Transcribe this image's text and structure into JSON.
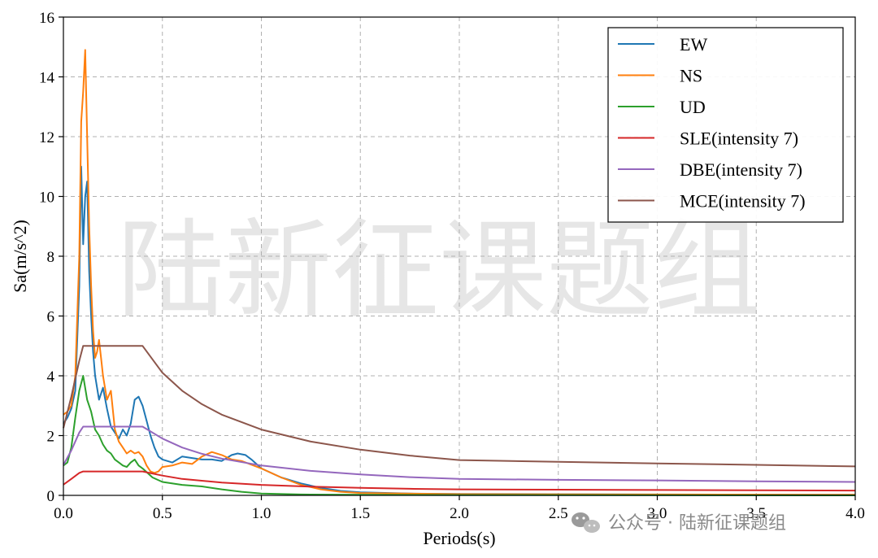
{
  "chart_data": {
    "type": "line",
    "xlabel": "Periods(s)",
    "ylabel": "Sa(m/s^2)",
    "xlim": [
      0,
      4
    ],
    "ylim": [
      0,
      16
    ],
    "xticks": [
      "0.0",
      "0.5",
      "1.0",
      "1.5",
      "2.0",
      "2.5",
      "3.0",
      "3.5",
      "4.0"
    ],
    "yticks": [
      "0",
      "2",
      "4",
      "6",
      "8",
      "10",
      "12",
      "14",
      "16"
    ],
    "grid": true,
    "legend_position": "top-right",
    "series": [
      {
        "name": "EW",
        "color": "#1f77b4",
        "points": [
          [
            0,
            2.4
          ],
          [
            0.02,
            2.6
          ],
          [
            0.04,
            2.9
          ],
          [
            0.06,
            3.5
          ],
          [
            0.08,
            7.0
          ],
          [
            0.09,
            11.0
          ],
          [
            0.1,
            8.4
          ],
          [
            0.11,
            10.0
          ],
          [
            0.12,
            10.5
          ],
          [
            0.13,
            7.5
          ],
          [
            0.14,
            6.0
          ],
          [
            0.15,
            4.8
          ],
          [
            0.16,
            4.0
          ],
          [
            0.17,
            3.6
          ],
          [
            0.18,
            3.2
          ],
          [
            0.2,
            3.6
          ],
          [
            0.22,
            2.9
          ],
          [
            0.24,
            2.3
          ],
          [
            0.26,
            2.1
          ],
          [
            0.28,
            1.9
          ],
          [
            0.3,
            2.2
          ],
          [
            0.32,
            2.0
          ],
          [
            0.34,
            2.4
          ],
          [
            0.36,
            3.2
          ],
          [
            0.38,
            3.3
          ],
          [
            0.4,
            3.0
          ],
          [
            0.42,
            2.5
          ],
          [
            0.44,
            2.0
          ],
          [
            0.46,
            1.6
          ],
          [
            0.48,
            1.3
          ],
          [
            0.5,
            1.2
          ],
          [
            0.55,
            1.1
          ],
          [
            0.6,
            1.3
          ],
          [
            0.65,
            1.25
          ],
          [
            0.7,
            1.2
          ],
          [
            0.75,
            1.2
          ],
          [
            0.8,
            1.15
          ],
          [
            0.85,
            1.35
          ],
          [
            0.88,
            1.4
          ],
          [
            0.92,
            1.35
          ],
          [
            0.95,
            1.2
          ],
          [
            1.0,
            0.9
          ],
          [
            1.1,
            0.6
          ],
          [
            1.2,
            0.4
          ],
          [
            1.3,
            0.25
          ],
          [
            1.4,
            0.15
          ],
          [
            1.5,
            0.1
          ],
          [
            1.75,
            0.06
          ],
          [
            2.0,
            0.05
          ],
          [
            3.0,
            0.03
          ],
          [
            4.0,
            0.02
          ]
        ]
      },
      {
        "name": "NS",
        "color": "#ff7f0e",
        "points": [
          [
            0,
            2.7
          ],
          [
            0.02,
            2.8
          ],
          [
            0.04,
            3.0
          ],
          [
            0.06,
            4.0
          ],
          [
            0.08,
            8.0
          ],
          [
            0.09,
            12.5
          ],
          [
            0.1,
            13.5
          ],
          [
            0.11,
            14.9
          ],
          [
            0.12,
            12.0
          ],
          [
            0.13,
            9.0
          ],
          [
            0.14,
            7.0
          ],
          [
            0.15,
            5.5
          ],
          [
            0.16,
            4.6
          ],
          [
            0.17,
            4.8
          ],
          [
            0.18,
            5.2
          ],
          [
            0.19,
            4.6
          ],
          [
            0.2,
            4.0
          ],
          [
            0.22,
            3.2
          ],
          [
            0.24,
            3.5
          ],
          [
            0.26,
            2.2
          ],
          [
            0.28,
            1.8
          ],
          [
            0.3,
            1.6
          ],
          [
            0.32,
            1.4
          ],
          [
            0.34,
            1.5
          ],
          [
            0.36,
            1.4
          ],
          [
            0.38,
            1.45
          ],
          [
            0.4,
            1.3
          ],
          [
            0.42,
            1.0
          ],
          [
            0.44,
            0.8
          ],
          [
            0.46,
            0.75
          ],
          [
            0.48,
            0.8
          ],
          [
            0.5,
            0.95
          ],
          [
            0.55,
            1.0
          ],
          [
            0.6,
            1.1
          ],
          [
            0.65,
            1.05
          ],
          [
            0.7,
            1.3
          ],
          [
            0.75,
            1.45
          ],
          [
            0.8,
            1.35
          ],
          [
            0.85,
            1.2
          ],
          [
            0.9,
            1.15
          ],
          [
            1.0,
            0.9
          ],
          [
            1.1,
            0.6
          ],
          [
            1.2,
            0.35
          ],
          [
            1.3,
            0.2
          ],
          [
            1.4,
            0.12
          ],
          [
            1.5,
            0.08
          ],
          [
            2.0,
            0.04
          ],
          [
            3.0,
            0.03
          ],
          [
            4.0,
            0.02
          ]
        ]
      },
      {
        "name": "UD",
        "color": "#2ca02c",
        "points": [
          [
            0,
            1.0
          ],
          [
            0.02,
            1.1
          ],
          [
            0.04,
            1.6
          ],
          [
            0.06,
            2.6
          ],
          [
            0.08,
            3.5
          ],
          [
            0.1,
            4.0
          ],
          [
            0.12,
            3.2
          ],
          [
            0.14,
            2.8
          ],
          [
            0.16,
            2.2
          ],
          [
            0.18,
            2.0
          ],
          [
            0.2,
            1.7
          ],
          [
            0.22,
            1.5
          ],
          [
            0.24,
            1.4
          ],
          [
            0.26,
            1.2
          ],
          [
            0.28,
            1.1
          ],
          [
            0.3,
            1.0
          ],
          [
            0.32,
            0.95
          ],
          [
            0.34,
            1.1
          ],
          [
            0.36,
            1.2
          ],
          [
            0.38,
            1.0
          ],
          [
            0.4,
            0.9
          ],
          [
            0.45,
            0.6
          ],
          [
            0.5,
            0.45
          ],
          [
            0.6,
            0.35
          ],
          [
            0.7,
            0.3
          ],
          [
            0.8,
            0.2
          ],
          [
            0.9,
            0.12
          ],
          [
            1.0,
            0.06
          ],
          [
            1.2,
            0.03
          ],
          [
            1.5,
            0.02
          ],
          [
            2.0,
            0.01
          ],
          [
            4.0,
            0.0
          ]
        ]
      },
      {
        "name": "SLE(intensity 7)",
        "color": "#d62728",
        "points": [
          [
            0,
            0.36
          ],
          [
            0.04,
            0.55
          ],
          [
            0.08,
            0.75
          ],
          [
            0.1,
            0.8
          ],
          [
            0.4,
            0.8
          ],
          [
            0.5,
            0.66
          ],
          [
            0.6,
            0.55
          ],
          [
            0.8,
            0.43
          ],
          [
            1.0,
            0.35
          ],
          [
            1.25,
            0.29
          ],
          [
            1.5,
            0.25
          ],
          [
            1.75,
            0.22
          ],
          [
            2.0,
            0.2
          ],
          [
            2.5,
            0.19
          ],
          [
            3.0,
            0.18
          ],
          [
            3.5,
            0.17
          ],
          [
            4.0,
            0.16
          ]
        ]
      },
      {
        "name": "DBE(intensity 7)",
        "color": "#9467bd",
        "points": [
          [
            0,
            1.02
          ],
          [
            0.04,
            1.5
          ],
          [
            0.08,
            2.1
          ],
          [
            0.1,
            2.3
          ],
          [
            0.4,
            2.3
          ],
          [
            0.5,
            1.9
          ],
          [
            0.6,
            1.6
          ],
          [
            0.7,
            1.39
          ],
          [
            0.8,
            1.23
          ],
          [
            1.0,
            1.0
          ],
          [
            1.25,
            0.82
          ],
          [
            1.5,
            0.7
          ],
          [
            1.75,
            0.61
          ],
          [
            2.0,
            0.55
          ],
          [
            2.5,
            0.52
          ],
          [
            3.0,
            0.5
          ],
          [
            3.5,
            0.47
          ],
          [
            4.0,
            0.45
          ]
        ]
      },
      {
        "name": "MCE(intensity 7)",
        "color": "#8c564b",
        "points": [
          [
            0,
            2.25
          ],
          [
            0.04,
            3.3
          ],
          [
            0.08,
            4.5
          ],
          [
            0.1,
            5.0
          ],
          [
            0.4,
            5.0
          ],
          [
            0.5,
            4.1
          ],
          [
            0.6,
            3.5
          ],
          [
            0.7,
            3.05
          ],
          [
            0.8,
            2.7
          ],
          [
            1.0,
            2.2
          ],
          [
            1.25,
            1.8
          ],
          [
            1.5,
            1.53
          ],
          [
            1.75,
            1.33
          ],
          [
            2.0,
            1.18
          ],
          [
            2.5,
            1.12
          ],
          [
            3.0,
            1.07
          ],
          [
            3.5,
            1.02
          ],
          [
            4.0,
            0.97
          ]
        ]
      }
    ]
  },
  "watermark": {
    "text": "陆新征课题组"
  },
  "footer": {
    "text": "公众号 · 陆新征课题组",
    "icon": "wechat-icon"
  }
}
